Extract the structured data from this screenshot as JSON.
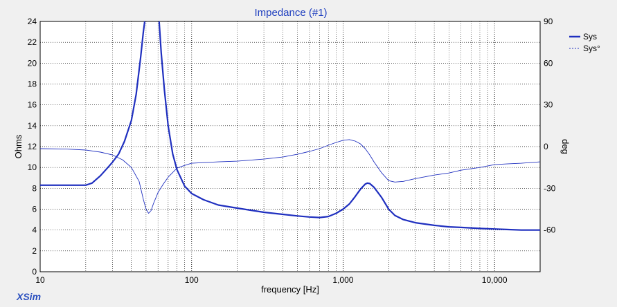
{
  "app": {
    "brand": "XSim"
  },
  "chart_data": {
    "type": "line",
    "title": "Impedance (#1)",
    "xlabel": "frequency [Hz]",
    "ylabel": "Ohms",
    "y2label": "deg",
    "xscale": "log",
    "xlim": [
      10,
      20000
    ],
    "ylim": [
      0,
      24
    ],
    "y2lim": [
      -90,
      90
    ],
    "grid": true,
    "legend_position": "top-right",
    "x_ticks": [
      {
        "value": 10,
        "label": "10"
      },
      {
        "value": 100,
        "label": "100"
      },
      {
        "value": 1000,
        "label": "1,000"
      },
      {
        "value": 10000,
        "label": "10,000"
      }
    ],
    "y_ticks": [
      {
        "value": 0,
        "label": "0"
      },
      {
        "value": 2,
        "label": "2"
      },
      {
        "value": 4,
        "label": "4"
      },
      {
        "value": 6,
        "label": "6"
      },
      {
        "value": 8,
        "label": "8"
      },
      {
        "value": 10,
        "label": "10"
      },
      {
        "value": 12,
        "label": "12"
      },
      {
        "value": 14,
        "label": "14"
      },
      {
        "value": 16,
        "label": "16"
      },
      {
        "value": 18,
        "label": "18"
      },
      {
        "value": 20,
        "label": "20"
      },
      {
        "value": 22,
        "label": "22"
      },
      {
        "value": 24,
        "label": "24"
      }
    ],
    "y2_ticks": [
      {
        "value": 90,
        "label": "90"
      },
      {
        "value": 60,
        "label": "60"
      },
      {
        "value": 30,
        "label": "30"
      },
      {
        "value": 0,
        "label": "0"
      },
      {
        "value": -30,
        "label": "-30"
      },
      {
        "value": -60,
        "label": "-60"
      }
    ],
    "series": [
      {
        "name": "Sys",
        "axis": "left",
        "color": "#1f2fbf",
        "style": "solid-thick",
        "points": [
          [
            10,
            8.3
          ],
          [
            15,
            8.3
          ],
          [
            20,
            8.3
          ],
          [
            22,
            8.5
          ],
          [
            25,
            9.2
          ],
          [
            28,
            10.0
          ],
          [
            30,
            10.5
          ],
          [
            33,
            11.3
          ],
          [
            36,
            12.5
          ],
          [
            40,
            14.5
          ],
          [
            43,
            17.0
          ],
          [
            46,
            20.5
          ],
          [
            48,
            23.0
          ],
          [
            49,
            24.0
          ],
          null,
          [
            61,
            24.0
          ],
          [
            63,
            21.0
          ],
          [
            66,
            17.5
          ],
          [
            70,
            14.0
          ],
          [
            75,
            11.3
          ],
          [
            80,
            9.8
          ],
          [
            90,
            8.2
          ],
          [
            100,
            7.5
          ],
          [
            120,
            6.9
          ],
          [
            150,
            6.4
          ],
          [
            200,
            6.1
          ],
          [
            300,
            5.7
          ],
          [
            400,
            5.5
          ],
          [
            500,
            5.35
          ],
          [
            600,
            5.25
          ],
          [
            700,
            5.2
          ],
          [
            800,
            5.3
          ],
          [
            900,
            5.6
          ],
          [
            1000,
            6.0
          ],
          [
            1100,
            6.5
          ],
          [
            1200,
            7.2
          ],
          [
            1300,
            7.9
          ],
          [
            1400,
            8.4
          ],
          [
            1450,
            8.5
          ],
          [
            1500,
            8.45
          ],
          [
            1600,
            8.1
          ],
          [
            1800,
            7.1
          ],
          [
            2000,
            6.0
          ],
          [
            2200,
            5.4
          ],
          [
            2500,
            5.0
          ],
          [
            3000,
            4.7
          ],
          [
            4000,
            4.45
          ],
          [
            5000,
            4.3
          ],
          [
            6000,
            4.25
          ],
          [
            8000,
            4.15
          ],
          [
            10000,
            4.1
          ],
          [
            12000,
            4.05
          ],
          [
            15000,
            4.0
          ],
          [
            20000,
            4.0
          ]
        ]
      },
      {
        "name": "Sys°",
        "axis": "right",
        "color": "#1f2fbf",
        "style": "solid-thin",
        "points": [
          [
            10,
            -1.5
          ],
          [
            15,
            -1.8
          ],
          [
            20,
            -2.5
          ],
          [
            25,
            -4.0
          ],
          [
            30,
            -6.0
          ],
          [
            35,
            -9.5
          ],
          [
            40,
            -15.0
          ],
          [
            45,
            -25.0
          ],
          [
            48,
            -38.0
          ],
          [
            50,
            -45.0
          ],
          [
            52,
            -48.0
          ],
          [
            54,
            -46.0
          ],
          [
            56,
            -41.0
          ],
          [
            60,
            -33.0
          ],
          [
            65,
            -27.0
          ],
          [
            70,
            -22.0
          ],
          [
            80,
            -15.5
          ],
          [
            90,
            -13.5
          ],
          [
            100,
            -12.0
          ],
          [
            150,
            -11.0
          ],
          [
            200,
            -10.5
          ],
          [
            300,
            -9.0
          ],
          [
            400,
            -7.5
          ],
          [
            500,
            -5.5
          ],
          [
            600,
            -3.5
          ],
          [
            700,
            -1.5
          ],
          [
            800,
            1.0
          ],
          [
            900,
            3.0
          ],
          [
            1000,
            4.5
          ],
          [
            1100,
            5.0
          ],
          [
            1200,
            4.0
          ],
          [
            1300,
            2.0
          ],
          [
            1400,
            -1.5
          ],
          [
            1500,
            -6.0
          ],
          [
            1600,
            -11.0
          ],
          [
            1800,
            -19.0
          ],
          [
            2000,
            -24.5
          ],
          [
            2200,
            -25.5
          ],
          [
            2500,
            -25.0
          ],
          [
            3000,
            -23.0
          ],
          [
            4000,
            -20.5
          ],
          [
            5000,
            -19.0
          ],
          [
            6000,
            -17.0
          ],
          [
            8000,
            -15.0
          ],
          [
            10000,
            -13.0
          ],
          [
            12000,
            -12.5
          ],
          [
            15000,
            -12.0
          ],
          [
            20000,
            -11.0
          ]
        ]
      }
    ]
  }
}
